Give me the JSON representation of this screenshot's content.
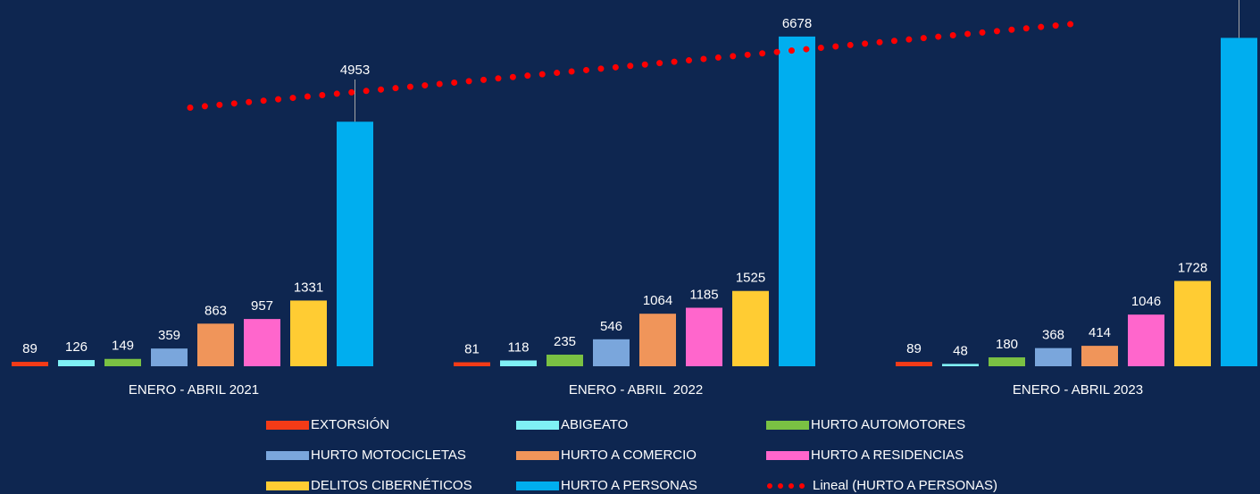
{
  "chart_data": {
    "type": "bar",
    "categories": [
      "ENERO - ABRIL 2021",
      "ENERO - ABRIL  2022",
      "ENERO - ABRIL 2023"
    ],
    "series": [
      {
        "name": "EXTORSIÓN",
        "color": "#f43b17",
        "values": [
          89,
          81,
          89
        ]
      },
      {
        "name": "ABIGEATO",
        "color": "#7ff0f5",
        "values": [
          126,
          118,
          48
        ]
      },
      {
        "name": "HURTO AUTOMOTORES",
        "color": "#7ac143",
        "values": [
          149,
          235,
          180
        ]
      },
      {
        "name": "HURTO MOTOCICLETAS",
        "color": "#7aa6dc",
        "values": [
          359,
          546,
          368
        ]
      },
      {
        "name": "HURTO A COMERCIO",
        "color": "#f0955a",
        "values": [
          863,
          1064,
          414
        ]
      },
      {
        "name": "HURTO A RESIDENCIAS",
        "color": "#ff66cc",
        "values": [
          957,
          1185,
          1046
        ]
      },
      {
        "name": "DELITOS CIBERNÉTICOS",
        "color": "#ffcc33",
        "values": [
          1331,
          1525,
          1728
        ]
      },
      {
        "name": "HURTO A PERSONAS",
        "color": "#00aeef",
        "values": [
          4953,
          6678,
          6651
        ]
      }
    ],
    "trendline": {
      "name": "Lineal (HURTO A PERSONAS)",
      "color": "#ff0000"
    },
    "ylim": [
      0,
      7400
    ]
  }
}
